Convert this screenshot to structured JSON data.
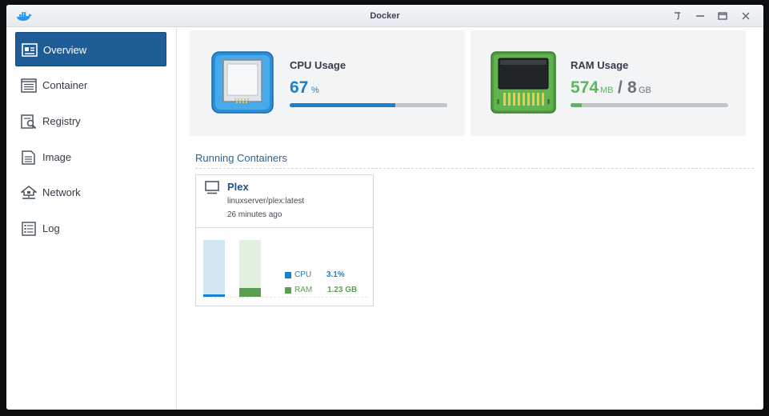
{
  "window": {
    "title": "Docker"
  },
  "titlebar": {
    "icons": [
      "pin-icon",
      "minimize-icon",
      "maximize-icon",
      "close-icon"
    ]
  },
  "sidebar": {
    "items": [
      {
        "label": "Overview",
        "icon": "overview-icon",
        "active": true
      },
      {
        "label": "Container",
        "icon": "container-icon",
        "active": false
      },
      {
        "label": "Registry",
        "icon": "registry-icon",
        "active": false
      },
      {
        "label": "Image",
        "icon": "image-icon",
        "active": false
      },
      {
        "label": "Network",
        "icon": "network-icon",
        "active": false
      },
      {
        "label": "Log",
        "icon": "log-icon",
        "active": false
      }
    ]
  },
  "cpu": {
    "title": "CPU Usage",
    "value": "67",
    "unit": "%",
    "percent": 67,
    "color": "#1a7fcc"
  },
  "ram": {
    "title": "RAM Usage",
    "used": "574",
    "used_unit": "MB",
    "separator": "/",
    "total": "8",
    "total_unit": "GB",
    "fraction": 0.07,
    "color": "#5cb85c"
  },
  "running": {
    "title": "Running Containers",
    "containers": [
      {
        "name": "Plex",
        "image": "linuxserver/plex:latest",
        "uptime": "26 minutes ago",
        "cpu_label": "CPU",
        "cpu_value": "3.1%",
        "cpu_fraction": 0.031,
        "ram_label": "RAM",
        "ram_value": "1.23 GB",
        "ram_fraction": 0.15,
        "cpu_color": "#1a7fcc",
        "ram_color": "#5a9e55"
      }
    ]
  }
}
